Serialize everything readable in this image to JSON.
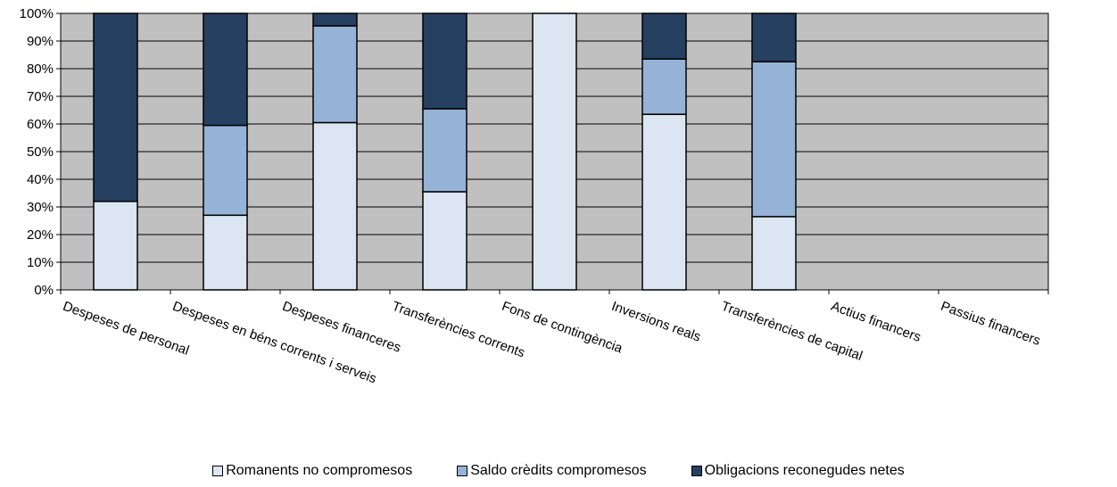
{
  "chart_data": {
    "type": "bar",
    "stacked": true,
    "percent": true,
    "categories": [
      "Despeses de personal",
      "Despeses en béns corrents i serveis",
      "Despeses financeres",
      "Transferències corrents",
      "Fons de contingència",
      "Inversions reals",
      "Transferències de capital",
      "Actius financers",
      "Passius financers"
    ],
    "series": [
      {
        "name": "Romanents no compromesos",
        "color": "#dce6f2",
        "values": [
          32,
          27,
          60.5,
          35.5,
          100,
          63.5,
          26.5,
          0,
          0
        ]
      },
      {
        "name": "Saldo crèdits compromesos",
        "color": "#95b3d7",
        "values": [
          0,
          32.5,
          35,
          30,
          0,
          20,
          56,
          0,
          0
        ]
      },
      {
        "name": "Obligacions reconegudes netes",
        "color": "#254061",
        "values": [
          68,
          40.5,
          4.5,
          34.5,
          0,
          16.5,
          17.5,
          0,
          0
        ]
      }
    ],
    "ylim": [
      0,
      100
    ],
    "yticks": [
      "0%",
      "10%",
      "20%",
      "30%",
      "40%",
      "50%",
      "60%",
      "70%",
      "80%",
      "90%",
      "100%"
    ],
    "grid": true,
    "plot_background": "#c0c0c0",
    "legend_position": "bottom"
  }
}
